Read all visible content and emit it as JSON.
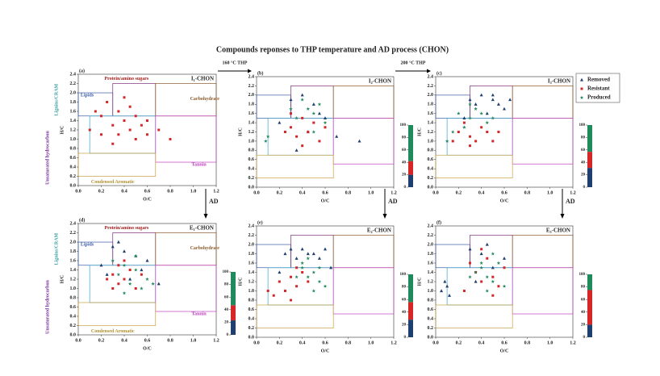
{
  "chart_data": {
    "type": "scatter",
    "title": "Compounds reponses to THP temperature and AD process (CHON)",
    "x_label": "O/C",
    "y_label": "H/C",
    "xlim": [
      0,
      1.2
    ],
    "ylim": [
      0,
      2.4
    ],
    "xticks": [
      {
        "value": 0,
        "label": "0.0"
      },
      0.2,
      0.4,
      0.6,
      0.8,
      {
        "value": 1,
        "label": "1.0"
      },
      1.2
    ],
    "yticks": [
      {
        "value": 0,
        "label": "0.0"
      },
      0.2,
      0.4,
      0.6,
      0.8,
      {
        "value": 1,
        "label": "1.0"
      },
      1.2,
      1.4,
      1.6,
      1.8,
      {
        "value": 2,
        "label": "2.0"
      },
      2.2,
      2.4
    ],
    "bar_lim": [
      0,
      100
    ],
    "bar_ticks": [
      0,
      20,
      40,
      60,
      80,
      100
    ],
    "series": [
      {
        "name": "Removed",
        "color": "#1f3f6e"
      },
      {
        "name": "Resistant",
        "color": "#d62728"
      },
      {
        "name": "Produced",
        "color": "#1f8a5c"
      }
    ],
    "region_labels": [
      "Protein/amino sugars",
      "Lipids",
      "Lignins/CRAM",
      "Carbohydrate",
      "Unsaturated hydrocarbon",
      "Tannin",
      "Condensed Aromatic"
    ],
    "transitions": [
      "160 °C THP",
      "200 °C THP",
      "AD"
    ],
    "panels": [
      {
        "tag": "(a)",
        "name": "I₁-CHON",
        "points": [
          {
            "x": [],
            "y": []
          },
          {
            "x": [
              0.1,
              0.2,
              0.3,
              0.35,
              0.4,
              0.45,
              0.5,
              0.55,
              0.6,
              0.25,
              0.4,
              0.5,
              0.3,
              0.7,
              0.15,
              0.45,
              0.35,
              0.6,
              0.8,
              0.2
            ],
            "y": [
              1.2,
              1.5,
              1.3,
              1.6,
              1.4,
              1.2,
              1.5,
              1.3,
              1.1,
              1.8,
              1.9,
              1.0,
              0.9,
              1.2,
              1.6,
              1.7,
              1.1,
              1.4,
              1.0,
              1.1
            ]
          },
          {
            "x": [],
            "y": []
          }
        ]
      },
      {
        "tag": "(b)",
        "name": "I₂-CHON",
        "composition": [
          20,
          22,
          58
        ],
        "points": [
          {
            "x": [
              0.3,
              0.4,
              0.5,
              0.6,
              0.2,
              0.45,
              0.7,
              0.9,
              0.35,
              0.55
            ],
            "y": [
              1.9,
              2.0,
              1.8,
              1.5,
              1.4,
              1.2,
              1.1,
              1.0,
              0.8,
              1.6
            ]
          },
          {
            "x": [
              0.3,
              0.35,
              0.4,
              0.45,
              0.5,
              0.25,
              0.55,
              0.4,
              0.3,
              0.6
            ],
            "y": [
              1.3,
              1.1,
              1.5,
              1.2,
              1.4,
              1.2,
              1.0,
              0.9,
              1.6,
              1.3
            ]
          },
          {
            "x": [
              0.4,
              0.45,
              0.5,
              0.55,
              0.35,
              0.6,
              0.3,
              0.5,
              0.08,
              0.1
            ],
            "y": [
              1.9,
              1.7,
              1.6,
              1.8,
              1.5,
              1.4,
              1.7,
              1.2,
              1.0,
              1.1
            ]
          }
        ]
      },
      {
        "tag": "(c)",
        "name": "I₃-CHON",
        "composition": [
          31,
          26,
          43
        ],
        "points": [
          {
            "x": [
              0.3,
              0.4,
              0.5,
              0.55,
              0.6,
              0.35,
              0.45,
              0.25,
              0.65,
              0.5
            ],
            "y": [
              1.9,
              2.0,
              1.9,
              1.8,
              1.7,
              1.8,
              1.6,
              1.5,
              1.9,
              2.0
            ]
          },
          {
            "x": [
              0.2,
              0.3,
              0.35,
              0.4,
              0.45,
              0.5,
              0.25,
              0.15,
              0.55,
              0.3
            ],
            "y": [
              1.2,
              1.1,
              1.0,
              1.3,
              1.2,
              1.0,
              1.4,
              1.0,
              1.2,
              0.9
            ]
          },
          {
            "x": [
              0.2,
              0.3,
              0.35,
              0.4,
              0.45,
              0.25,
              0.1,
              0.5,
              0.3,
              0.15
            ],
            "y": [
              1.6,
              1.5,
              1.7,
              1.6,
              1.4,
              1.3,
              1.0,
              1.5,
              1.8,
              1.2
            ]
          }
        ]
      },
      {
        "tag": "(d)",
        "name": "E₁-CHON",
        "composition": [
          23,
          24,
          53
        ],
        "points": [
          {
            "x": [
              0.3,
              0.4,
              0.5,
              0.2,
              0.35,
              0.45,
              0.55,
              0.6,
              0.7,
              0.25
            ],
            "y": [
              1.9,
              1.8,
              1.7,
              1.5,
              2.0,
              1.2,
              1.4,
              1.6,
              1.1,
              1.3
            ]
          },
          {
            "x": [
              0.3,
              0.35,
              0.4,
              0.45,
              0.5,
              0.25,
              0.55,
              0.4,
              0.3,
              0.35
            ],
            "y": [
              1.3,
              1.1,
              1.2,
              1.4,
              1.0,
              1.2,
              1.3,
              1.6,
              1.0,
              1.5
            ]
          },
          {
            "x": [
              0.4,
              0.5,
              0.35,
              0.45,
              0.6,
              0.3,
              0.55,
              0.5,
              0.4,
              0.65
            ],
            "y": [
              1.5,
              1.4,
              1.3,
              1.1,
              1.2,
              1.6,
              1.0,
              1.7,
              0.9,
              1.1
            ]
          }
        ]
      },
      {
        "tag": "(e)",
        "name": "E₂-CHON",
        "composition": [
          28,
          28,
          44
        ],
        "points": [
          {
            "x": [
              0.3,
              0.4,
              0.5,
              0.6,
              0.35,
              0.45,
              0.55,
              0.25,
              0.65,
              0.2
            ],
            "y": [
              1.9,
              1.9,
              1.8,
              1.9,
              1.7,
              1.8,
              1.7,
              1.8,
              1.5,
              1.4
            ]
          },
          {
            "x": [
              0.2,
              0.25,
              0.3,
              0.35,
              0.4,
              0.1,
              0.15,
              0.3,
              0.35,
              0.45
            ],
            "y": [
              1.2,
              1.0,
              1.3,
              1.1,
              1.4,
              1.0,
              0.9,
              0.8,
              1.5,
              1.2
            ]
          },
          {
            "x": [
              0.4,
              0.45,
              0.5,
              0.55,
              0.6,
              0.4,
              0.5,
              0.45,
              0.55,
              0.35
            ],
            "y": [
              1.5,
              1.3,
              1.4,
              1.2,
              1.1,
              1.6,
              1.0,
              1.7,
              1.5,
              1.3
            ]
          }
        ]
      },
      {
        "tag": "(f)",
        "name": "E₃-CHON",
        "composition": [
          20,
          55,
          25
        ],
        "points": [
          {
            "x": [
              0.05,
              0.1,
              0.08,
              0.3,
              0.4,
              0.5,
              0.12,
              0.6,
              0.35,
              0.45
            ],
            "y": [
              1.0,
              1.1,
              1.2,
              1.9,
              1.8,
              1.5,
              0.9,
              1.7,
              1.2,
              2.0
            ]
          },
          {
            "x": [
              0.3,
              0.35,
              0.4,
              0.45,
              0.5,
              0.55,
              0.25,
              0.6,
              0.4,
              0.5
            ],
            "y": [
              1.6,
              1.4,
              1.2,
              1.7,
              1.3,
              1.1,
              1.0,
              1.5,
              1.9,
              0.9
            ]
          },
          {
            "x": [
              0.4,
              0.45,
              0.5,
              0.35,
              0.55,
              0.6,
              0.45,
              0.3,
              0.5,
              0.4
            ],
            "y": [
              1.5,
              1.3,
              1.2,
              1.4,
              1.6,
              1.1,
              1.0,
              1.3,
              1.8,
              1.6
            ]
          }
        ]
      }
    ]
  }
}
